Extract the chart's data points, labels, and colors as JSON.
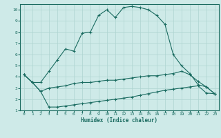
{
  "bg_color": "#ceeae8",
  "line_color": "#1a6b60",
  "grid_color": "#aed4d0",
  "xlabel": "Humidex (Indice chaleur)",
  "xlim": [
    -0.5,
    23.5
  ],
  "ylim": [
    1,
    10.5
  ],
  "yticks": [
    1,
    2,
    3,
    4,
    5,
    6,
    7,
    8,
    9,
    10
  ],
  "xticks": [
    0,
    1,
    2,
    3,
    4,
    5,
    6,
    7,
    8,
    9,
    10,
    11,
    12,
    13,
    14,
    15,
    16,
    17,
    18,
    19,
    20,
    21,
    22,
    23
  ],
  "line1_x": [
    0,
    1,
    2,
    3,
    4,
    5,
    6,
    7,
    8,
    9,
    10,
    11,
    12,
    13,
    14,
    15,
    16,
    17,
    18,
    19,
    20,
    21,
    22,
    23
  ],
  "line1_y": [
    4.2,
    3.5,
    3.5,
    4.5,
    5.5,
    6.5,
    6.3,
    7.9,
    8.0,
    9.5,
    10.0,
    9.3,
    10.2,
    10.3,
    10.2,
    10.0,
    9.5,
    8.7,
    6.0,
    5.0,
    4.3,
    3.3,
    3.1,
    2.5
  ],
  "line2_x": [
    0,
    1,
    2,
    3,
    4,
    5,
    6,
    7,
    8,
    9,
    10,
    11,
    12,
    13,
    14,
    15,
    16,
    17,
    18,
    19,
    20,
    21,
    22,
    23
  ],
  "line2_y": [
    4.2,
    3.5,
    2.7,
    3.0,
    3.1,
    3.2,
    3.4,
    3.5,
    3.5,
    3.6,
    3.7,
    3.7,
    3.8,
    3.9,
    4.0,
    4.1,
    4.1,
    4.2,
    4.3,
    4.5,
    4.2,
    3.6,
    3.1,
    2.5
  ],
  "line3_x": [
    0,
    1,
    2,
    3,
    4,
    5,
    6,
    7,
    8,
    9,
    10,
    11,
    12,
    13,
    14,
    15,
    16,
    17,
    18,
    19,
    20,
    21,
    22,
    23
  ],
  "line3_y": [
    4.2,
    3.5,
    2.7,
    1.3,
    1.3,
    1.4,
    1.5,
    1.6,
    1.7,
    1.8,
    1.9,
    2.0,
    2.1,
    2.2,
    2.35,
    2.5,
    2.65,
    2.8,
    2.9,
    3.0,
    3.1,
    3.2,
    2.55,
    2.5
  ]
}
